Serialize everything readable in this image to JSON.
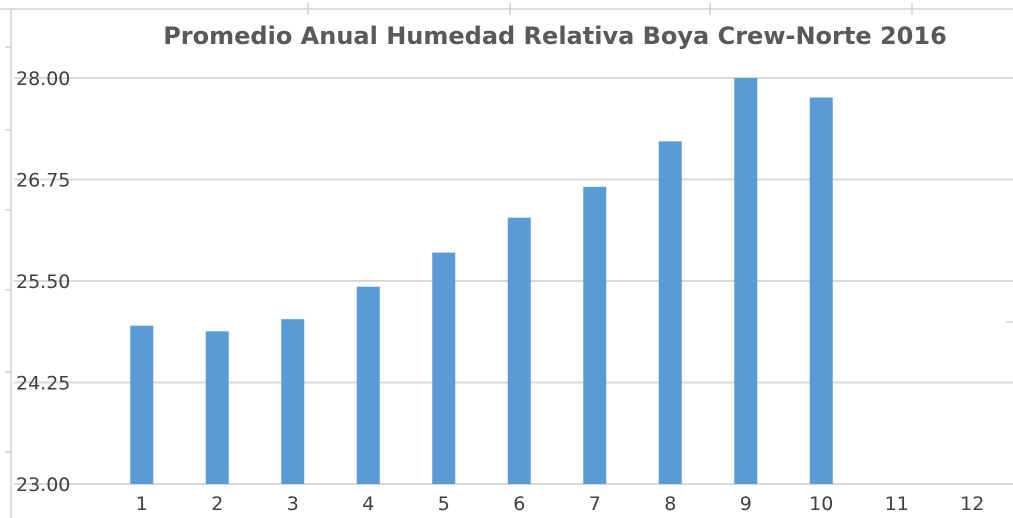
{
  "chart_data": {
    "type": "bar",
    "title": "Promedio Anual Humedad Relativa Boya Crew-Norte 2016",
    "categories": [
      "1",
      "2",
      "3",
      "4",
      "5",
      "6",
      "7",
      "8",
      "9",
      "10",
      "11",
      "12"
    ],
    "values": [
      24.95,
      24.88,
      25.03,
      25.43,
      25.85,
      26.28,
      26.66,
      27.22,
      28.0,
      27.76,
      null,
      null
    ],
    "ylim": [
      23.0,
      28.0
    ],
    "yticks": [
      "23.00",
      "24.25",
      "25.50",
      "26.75",
      "28.00"
    ],
    "xlabel": "",
    "ylabel": "",
    "grid": true,
    "legend": "none",
    "colors": {
      "bar": "#5b9bd5",
      "grid": "#d9d9d9",
      "title": "#595959"
    }
  }
}
